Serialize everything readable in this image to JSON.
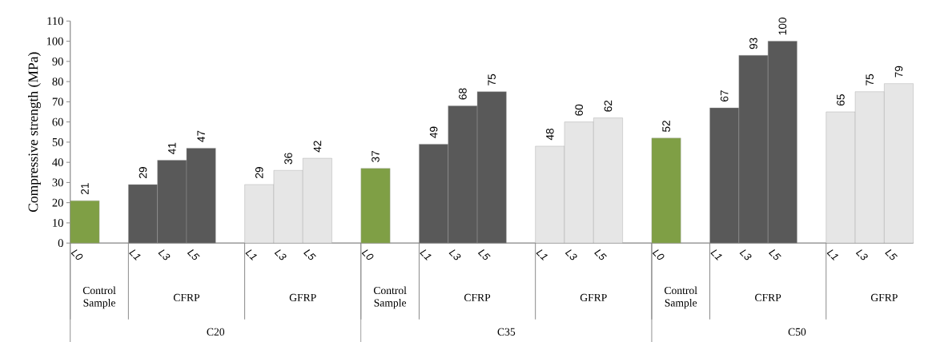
{
  "chart_data": {
    "type": "bar",
    "ylabel": "Compressive strength (MPa)",
    "categories": [
      "L0",
      "L1",
      "L3",
      "L5",
      "L1",
      "L3",
      "L5",
      "L0",
      "L1",
      "L3",
      "L5",
      "L1",
      "L3",
      "L5",
      "L0",
      "L1",
      "L3",
      "L5",
      "L1",
      "L3",
      "L5"
    ],
    "values": [
      21,
      29,
      41,
      47,
      29,
      36,
      42,
      37,
      49,
      68,
      75,
      48,
      60,
      62,
      52,
      67,
      93,
      100,
      65,
      75,
      79
    ],
    "colors": [
      "#7f9f45",
      "#595959",
      "#595959",
      "#595959",
      "#e6e6e6",
      "#e6e6e6",
      "#e6e6e6",
      "#7f9f45",
      "#595959",
      "#595959",
      "#595959",
      "#e6e6e6",
      "#e6e6e6",
      "#e6e6e6",
      "#7f9f45",
      "#595959",
      "#595959",
      "#595959",
      "#e6e6e6",
      "#e6e6e6",
      "#e6e6e6"
    ],
    "ylim": [
      0,
      110
    ],
    "yticks": [
      0,
      10,
      20,
      30,
      40,
      50,
      60,
      70,
      80,
      90,
      100,
      110
    ],
    "data_labels": true,
    "annotations": [
      "Control Sample",
      "CFRP",
      "GFRP",
      "Control Sample",
      "CFRP",
      "GFRP",
      "Control Sample",
      "CFRP",
      "GFRP",
      "C20",
      "C35",
      "C50"
    ]
  }
}
